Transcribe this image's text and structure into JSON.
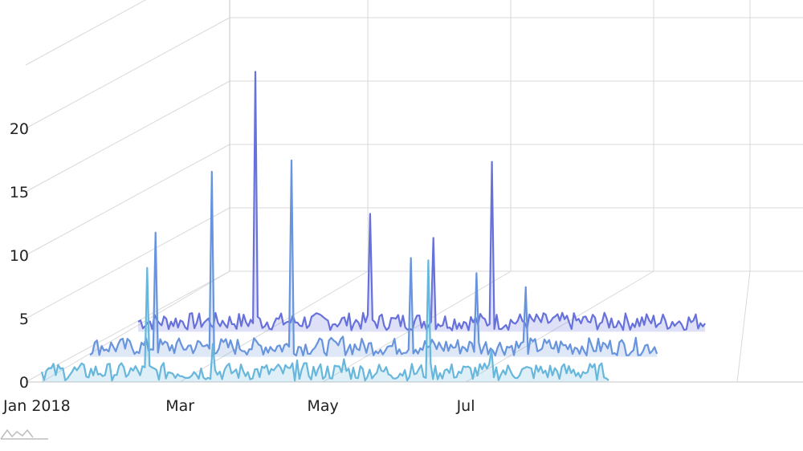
{
  "chart_data": {
    "type": "line",
    "style": "3d-stacked-series",
    "x_start": "2018-01-01",
    "x_end": "2018-08-31",
    "x_tick_labels": [
      {
        "label": "Jan 2018",
        "date": "2018-01-01"
      },
      {
        "label": "Mar",
        "date": "2018-03-01"
      },
      {
        "label": "May",
        "date": "2018-05-01"
      },
      {
        "label": "Jul",
        "date": "2018-07-01"
      }
    ],
    "y_tick_labels": [
      "0",
      "5",
      "10",
      "15",
      "20"
    ],
    "y_ticks": [
      0,
      5,
      10,
      15,
      20
    ],
    "ylim": [
      0,
      20
    ],
    "grid": true,
    "series": [
      {
        "color": "#67b7dc",
        "start": "2018-01-01",
        "end": "2018-08-31",
        "baseline": 0.6,
        "spikes": [
          {
            "date": "2018-02-15",
            "value": 9
          },
          {
            "date": "2018-03-15",
            "value": 3
          },
          {
            "date": "2018-04-20",
            "value": 1.7
          },
          {
            "date": "2018-05-10",
            "value": 1.8
          },
          {
            "date": "2018-06-15",
            "value": 9.6
          },
          {
            "date": "2018-07-12",
            "value": 2.5
          }
        ]
      },
      {
        "color": "#6794dc",
        "start": "2018-01-01",
        "end": "2018-08-31",
        "baseline": 0.6,
        "spikes": [
          {
            "date": "2018-01-29",
            "value": 9.8
          },
          {
            "date": "2018-02-22",
            "value": 14.6
          },
          {
            "date": "2018-03-28",
            "value": 15.5
          },
          {
            "date": "2018-04-19",
            "value": 1.6
          },
          {
            "date": "2018-05-18",
            "value": 7.8
          },
          {
            "date": "2018-06-15",
            "value": 6.6
          },
          {
            "date": "2018-07-06",
            "value": 5.5
          }
        ]
      },
      {
        "color": "#6771dc",
        "start": "2018-01-01",
        "end": "2018-08-31",
        "baseline": 0.6,
        "spikes": [
          {
            "date": "2018-02-20",
            "value": 20.5
          },
          {
            "date": "2018-04-10",
            "value": 9.3
          },
          {
            "date": "2018-05-07",
            "value": 7.4
          },
          {
            "date": "2018-06-01",
            "value": 13.4
          }
        ]
      }
    ]
  }
}
